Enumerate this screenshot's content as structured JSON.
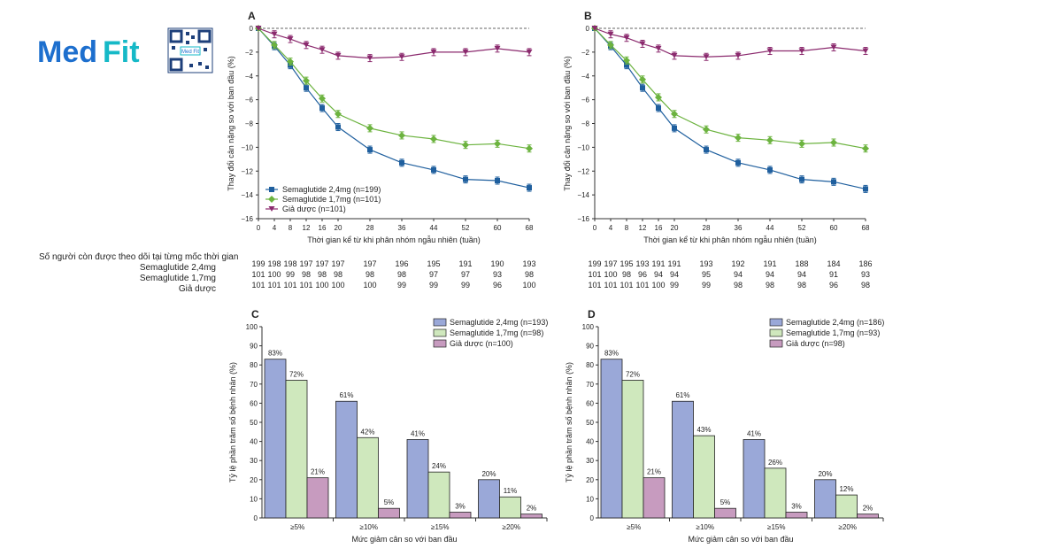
{
  "brand": {
    "logo_text_part1": "Med",
    "logo_text_part2": "Fit",
    "qr_label": "Med Fit"
  },
  "colors": {
    "sema24": "#1f5f9e",
    "sema17": "#6cb33f",
    "placebo": "#8b2a6e",
    "bar24": "#9aa8d8",
    "bar17": "#cfe8bd",
    "barPlacebo": "#c79bbf",
    "logo_blue": "#1d6fce",
    "logo_teal": "#16b9c7"
  },
  "followup": {
    "title": "Số người còn được theo dõi tại từng mốc thời gian",
    "rows": [
      {
        "label": "Semaglutide 2,4mg"
      },
      {
        "label": "Semaglutide 1,7mg"
      },
      {
        "label": "Giả dược"
      }
    ],
    "left_values": [
      [
        "199",
        "198",
        "198",
        "197",
        "197",
        "197",
        "197",
        "196",
        "195",
        "191",
        "190",
        "193"
      ],
      [
        "101",
        "100",
        "99",
        "98",
        "98",
        "98",
        "98",
        "98",
        "97",
        "97",
        "93",
        "98"
      ],
      [
        "101",
        "101",
        "101",
        "101",
        "100",
        "100",
        "100",
        "99",
        "99",
        "99",
        "96",
        "100"
      ]
    ],
    "right_values": [
      [
        "199",
        "197",
        "195",
        "193",
        "191",
        "191",
        "193",
        "192",
        "191",
        "188",
        "184",
        "186"
      ],
      [
        "101",
        "100",
        "98",
        "96",
        "94",
        "94",
        "95",
        "94",
        "94",
        "94",
        "91",
        "93"
      ],
      [
        "101",
        "101",
        "101",
        "101",
        "100",
        "99",
        "99",
        "98",
        "98",
        "98",
        "96",
        "98"
      ]
    ]
  },
  "chart_data": [
    {
      "id": "A",
      "panel_label": "A",
      "type": "line",
      "xlabel": "Thời gian kể từ khi phân nhóm ngẫu nhiên (tuần)",
      "ylabel": "Thay đổi cân nặng so với ban đầu (%)",
      "x": [
        0,
        4,
        8,
        12,
        16,
        20,
        28,
        36,
        44,
        52,
        60,
        68
      ],
      "xlim": [
        0,
        68
      ],
      "ylim": [
        -16,
        0
      ],
      "yticks": [
        0,
        -2,
        -4,
        -6,
        -8,
        -10,
        -12,
        -14,
        -16
      ],
      "series": [
        {
          "name": "Semaglutide 2,4mg (n=199)",
          "color_key": "sema24",
          "marker": "square",
          "values": [
            0,
            -1.5,
            -3.1,
            -5.0,
            -6.7,
            -8.3,
            -10.2,
            -11.3,
            -11.9,
            -12.7,
            -12.8,
            -13.4
          ]
        },
        {
          "name": "Semaglutide 1,7mg (n=101)",
          "color_key": "sema17",
          "marker": "diamond",
          "values": [
            0,
            -1.4,
            -2.8,
            -4.4,
            -5.9,
            -7.2,
            -8.4,
            -9.0,
            -9.3,
            -9.8,
            -9.7,
            -10.1
          ]
        },
        {
          "name": "Giả dược (n=101)",
          "color_key": "placebo",
          "marker": "triangle",
          "values": [
            0,
            -0.5,
            -0.9,
            -1.4,
            -1.8,
            -2.3,
            -2.5,
            -2.4,
            -2.0,
            -2.0,
            -1.7,
            -2.0
          ]
        }
      ]
    },
    {
      "id": "B",
      "panel_label": "B",
      "type": "line",
      "xlabel": "Thời gian kể từ khi phân nhóm ngẫu nhiên (tuần)",
      "ylabel": "Thay đổi cân nặng so với ban đầu (%)",
      "x": [
        0,
        4,
        8,
        12,
        16,
        20,
        28,
        36,
        44,
        52,
        60,
        68
      ],
      "xlim": [
        0,
        68
      ],
      "ylim": [
        -16,
        0
      ],
      "yticks": [
        0,
        -2,
        -4,
        -6,
        -8,
        -10,
        -12,
        -14,
        -16
      ],
      "series": [
        {
          "name": "Semaglutide 2,4mg",
          "color_key": "sema24",
          "marker": "square",
          "values": [
            0,
            -1.5,
            -3.1,
            -5.0,
            -6.7,
            -8.4,
            -10.2,
            -11.3,
            -11.9,
            -12.7,
            -12.9,
            -13.5
          ]
        },
        {
          "name": "Semaglutide 1,7mg",
          "color_key": "sema17",
          "marker": "diamond",
          "values": [
            0,
            -1.4,
            -2.7,
            -4.3,
            -5.8,
            -7.2,
            -8.5,
            -9.2,
            -9.4,
            -9.7,
            -9.6,
            -10.1
          ]
        },
        {
          "name": "Giả dược",
          "color_key": "placebo",
          "marker": "triangle",
          "values": [
            0,
            -0.5,
            -0.8,
            -1.3,
            -1.7,
            -2.3,
            -2.4,
            -2.3,
            -1.9,
            -1.9,
            -1.6,
            -1.9
          ]
        }
      ]
    },
    {
      "id": "C",
      "panel_label": "C",
      "type": "bar",
      "xlabel": "Mức giảm cân so với ban đầu",
      "ylabel": "Tỷ lệ phần trăm số bệnh nhân (%)",
      "categories": [
        "≥5%",
        "≥10%",
        "≥15%",
        "≥20%"
      ],
      "ylim": [
        0,
        100
      ],
      "yticks": [
        0,
        10,
        20,
        30,
        40,
        50,
        60,
        70,
        80,
        90,
        100
      ],
      "series": [
        {
          "name": "Semaglutide 2,4mg (n=193)",
          "color_key": "bar24",
          "values": [
            83,
            61,
            41,
            20
          ],
          "labels": [
            "83%",
            "61%",
            "41%",
            "20%"
          ]
        },
        {
          "name": "Semaglutide 1,7mg (n=98)",
          "color_key": "bar17",
          "values": [
            72,
            42,
            24,
            11
          ],
          "labels": [
            "72%",
            "42%",
            "24%",
            "11%"
          ]
        },
        {
          "name": "Giả dược (n=100)",
          "color_key": "barPlacebo",
          "values": [
            21,
            5,
            3,
            2
          ],
          "labels": [
            "21%",
            "5%",
            "3%",
            "2%"
          ]
        }
      ]
    },
    {
      "id": "D",
      "panel_label": "D",
      "type": "bar",
      "xlabel": "Mức giảm cân so với ban đầu",
      "ylabel": "Tỷ lệ phần trăm số bệnh nhân (%)",
      "categories": [
        "≥5%",
        "≥10%",
        "≥15%",
        "≥20%"
      ],
      "ylim": [
        0,
        100
      ],
      "yticks": [
        0,
        10,
        20,
        30,
        40,
        50,
        60,
        70,
        80,
        90,
        100
      ],
      "series": [
        {
          "name": "Semaglutide 2,4mg (n=186)",
          "color_key": "bar24",
          "values": [
            83,
            61,
            41,
            20
          ],
          "labels": [
            "83%",
            "61%",
            "41%",
            "20%"
          ]
        },
        {
          "name": "Semaglutide 1,7mg (n=93)",
          "color_key": "bar17",
          "values": [
            72,
            43,
            26,
            12
          ],
          "labels": [
            "72%",
            "43%",
            "26%",
            "12%"
          ]
        },
        {
          "name": "Giả dược (n=98)",
          "color_key": "barPlacebo",
          "values": [
            21,
            5,
            3,
            2
          ],
          "labels": [
            "21%",
            "5%",
            "3%",
            "2%"
          ]
        }
      ]
    }
  ]
}
